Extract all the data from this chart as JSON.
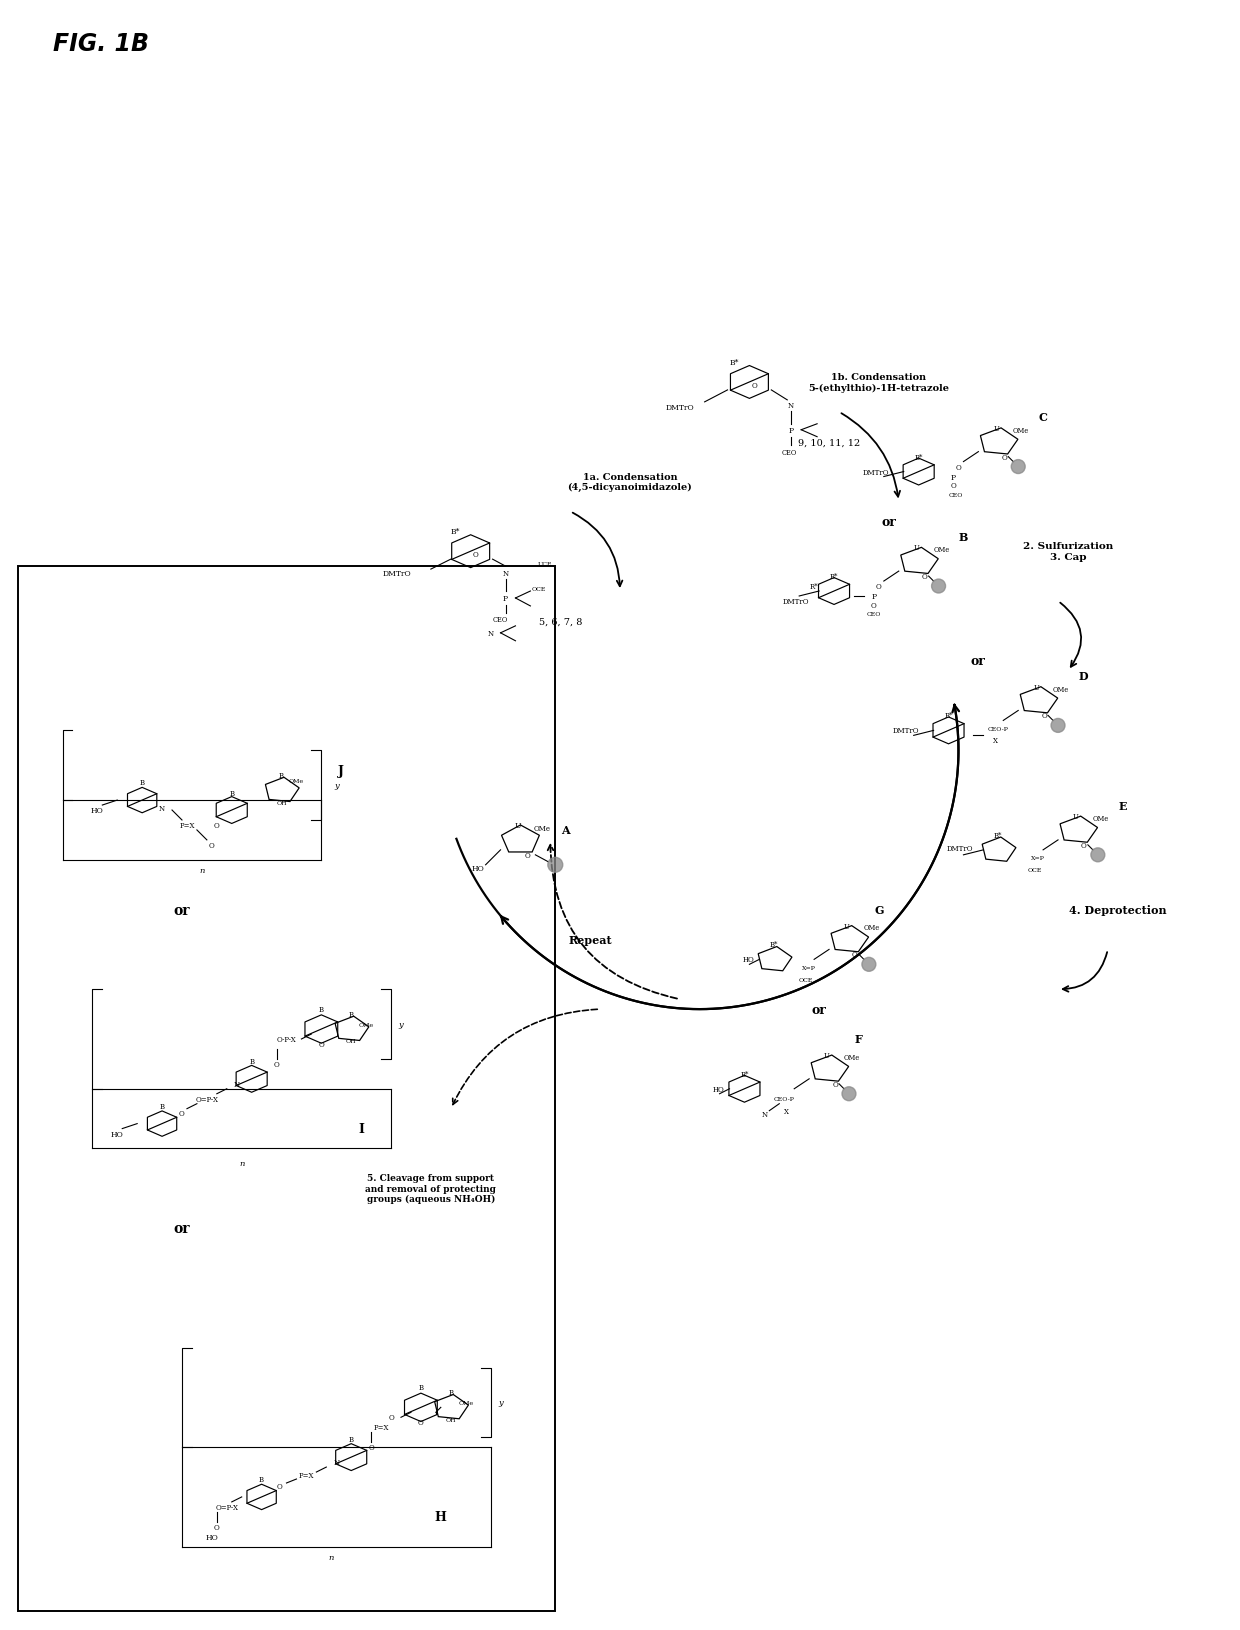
{
  "figsize": [
    12.4,
    16.31
  ],
  "dpi": 100,
  "bg": "#f5f5f0",
  "fig_title": "FIG. 1B",
  "step1a": "1a. Condensation\n(4,5-dicyanoimidazole)",
  "step1b": "1b. Condensation\n5-(ethylthio)-1H-tetrazole",
  "step2": "2. Sulfurization\n3. Cap",
  "step4": "4. Deprotection",
  "step5": "5. Cleavage from support\nand removal of protecting\ngroups (aqueous NH₄OH)",
  "repeat": "Repeat",
  "compounds_1a": "5, 6, 7, 8",
  "compounds_1b": "9, 10, 11, 12"
}
